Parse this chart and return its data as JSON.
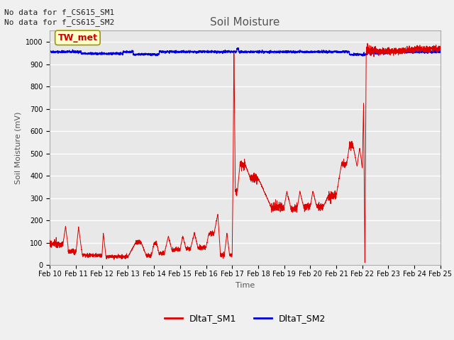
{
  "title": "Soil Moisture",
  "xlabel": "Time",
  "ylabel": "Soil Moisture (mV)",
  "fig_bg_color": "#f0f0f0",
  "plot_bg_color": "#e8e8e8",
  "ylim": [
    0,
    1050
  ],
  "yticks": [
    0,
    100,
    200,
    300,
    400,
    500,
    600,
    700,
    800,
    900,
    1000
  ],
  "xtick_labels": [
    "Feb 10",
    "Feb 11",
    "Feb 12",
    "Feb 13",
    "Feb 14",
    "Feb 15",
    "Feb 16",
    "Feb 17",
    "Feb 18",
    "Feb 19",
    "Feb 20",
    "Feb 21",
    "Feb 22",
    "Feb 23",
    "Feb 24",
    "Feb 25"
  ],
  "no_data_text": [
    "No data for f_CS615_SM1",
    "No data for f_CS615_SM2"
  ],
  "annotation_box_text": "TW_met",
  "annotation_box_color": "#ffffcc",
  "annotation_box_edge_color": "#999900",
  "annotation_text_color": "#cc0000",
  "line1_color": "#dd0000",
  "line2_color": "#0000dd",
  "legend_labels": [
    "DltaT_SM1",
    "DltaT_SM2"
  ],
  "title_fontsize": 11,
  "label_fontsize": 8,
  "tick_fontsize": 7,
  "nodata_fontsize": 8
}
